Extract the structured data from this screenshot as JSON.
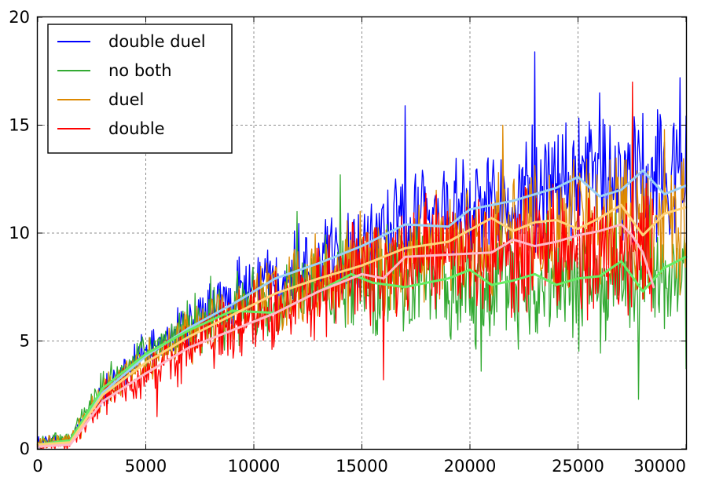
{
  "chart_data": {
    "type": "line",
    "title": "",
    "xlabel": "",
    "ylabel": "",
    "xlim": [
      0,
      30000
    ],
    "ylim": [
      0,
      20
    ],
    "xticks": [
      0,
      5000,
      10000,
      15000,
      20000,
      25000,
      30000
    ],
    "yticks": [
      0,
      5,
      10,
      15,
      20
    ],
    "xtick_labels": [
      "0",
      "5000",
      "10000",
      "15000",
      "20000",
      "25000",
      "30000"
    ],
    "ytick_labels": [
      "0",
      "5",
      "10",
      "15",
      "20"
    ],
    "grid": true,
    "legend_position": "top-left",
    "series": [
      {
        "name": "double duel",
        "color": "#0000ff",
        "raw": {
          "x_end": 30000,
          "trend_x": [
            0,
            1500,
            3000,
            5000,
            7000,
            10000,
            13000,
            15000,
            17000,
            20000,
            22000,
            24000,
            26000,
            28000,
            30000
          ],
          "trend_y": [
            0.3,
            0.4,
            2.6,
            4.4,
            5.8,
            7.6,
            8.9,
            9.6,
            10.3,
            11.1,
            11.7,
            12.1,
            12.3,
            12.7,
            12.9
          ],
          "noise": [
            0.3,
            0.3,
            0.9,
            1.2,
            1.5,
            1.9,
            2.3,
            2.6,
            2.8,
            3.1,
            3.3,
            3.5,
            3.5,
            3.6,
            3.6
          ],
          "peaks": [
            [
              4800,
              5.3
            ],
            [
              9300,
              8.9
            ],
            [
              17000,
              15.9
            ],
            [
              23000,
              18.4
            ],
            [
              26000,
              16.5
            ],
            [
              29700,
              17.2
            ]
          ]
        },
        "smoothed": {
          "name": "double duel (moving average)",
          "color": "#9ad0f5",
          "x": [
            0,
            1500,
            3000,
            5000,
            7000,
            9000,
            11000,
            13000,
            15000,
            17000,
            19000,
            20000,
            22000,
            24000,
            25000,
            26000,
            27000,
            28000,
            29000,
            30000
          ],
          "y": [
            0.2,
            0.3,
            2.6,
            4.3,
            5.6,
            6.7,
            7.9,
            8.6,
            9.4,
            10.4,
            10.3,
            11.1,
            11.5,
            12.1,
            12.6,
            11.7,
            12.0,
            12.9,
            11.8,
            12.2
          ]
        }
      },
      {
        "name": "no both",
        "color": "#33aa33",
        "raw": {
          "x_end": 30000,
          "trend_x": [
            0,
            1500,
            3000,
            5000,
            7000,
            10000,
            13000,
            15000,
            17000,
            20000,
            22000,
            24000,
            26000,
            28000,
            30000
          ],
          "trend_y": [
            0.3,
            0.5,
            2.9,
            4.5,
            5.6,
            6.6,
            7.5,
            7.8,
            7.8,
            7.8,
            7.6,
            7.8,
            7.9,
            7.8,
            8.6
          ],
          "noise": [
            0.3,
            0.4,
            0.9,
            1.2,
            1.6,
            2.1,
            2.6,
            2.9,
            3.1,
            3.4,
            3.6,
            3.8,
            3.8,
            3.9,
            4.0
          ],
          "peaks": [
            [
              8000,
              8.0
            ],
            [
              12000,
              11.0
            ],
            [
              14000,
              12.7
            ],
            [
              20500,
              3.6
            ],
            [
              27800,
              2.3
            ],
            [
              30000,
              3.7
            ]
          ]
        },
        "smoothed": {
          "name": "no both (moving average)",
          "color": "#66ee66",
          "x": [
            0,
            1500,
            3000,
            5000,
            7000,
            9000,
            11000,
            13000,
            14500,
            15500,
            17000,
            19000,
            20000,
            21000,
            22000,
            23000,
            24000,
            25000,
            26000,
            27000,
            28000,
            29000,
            30000
          ],
          "y": [
            0.2,
            0.4,
            2.8,
            4.4,
            5.5,
            6.4,
            6.3,
            7.3,
            8.1,
            7.7,
            7.5,
            7.9,
            8.3,
            7.6,
            7.8,
            8.1,
            7.6,
            7.9,
            8.0,
            8.7,
            7.3,
            8.4,
            8.9
          ]
        }
      },
      {
        "name": "duel",
        "color": "#dd8800",
        "raw": {
          "x_end": 30000,
          "trend_x": [
            0,
            1500,
            3000,
            5000,
            7000,
            10000,
            13000,
            15000,
            17000,
            20000,
            22000,
            24000,
            26000,
            28000,
            30000
          ],
          "trend_y": [
            0.3,
            0.4,
            2.6,
            4.1,
            5.3,
            6.8,
            7.9,
            8.5,
            9.0,
            9.6,
            9.9,
            10.2,
            10.6,
            10.4,
            10.8
          ],
          "noise": [
            0.3,
            0.3,
            0.9,
            1.2,
            1.6,
            2.0,
            2.4,
            2.7,
            3.0,
            3.3,
            3.5,
            3.6,
            3.7,
            3.7,
            3.8
          ],
          "peaks": [
            [
              2000,
              0.5
            ],
            [
              21500,
              15.0
            ],
            [
              27500,
              16.8
            ],
            [
              29000,
              14.8
            ]
          ]
        },
        "smoothed": {
          "name": "duel (moving average)",
          "color": "#ffd27a",
          "x": [
            0,
            1500,
            3000,
            5000,
            7000,
            9000,
            11000,
            13000,
            15000,
            17000,
            19000,
            21000,
            22000,
            23000,
            24000,
            25000,
            26000,
            27000,
            28000,
            29000,
            30000
          ],
          "y": [
            0.2,
            0.3,
            2.5,
            4.0,
            5.2,
            6.2,
            7.2,
            7.9,
            8.5,
            9.3,
            9.6,
            10.7,
            10.1,
            10.5,
            10.6,
            10.2,
            10.7,
            11.3,
            9.9,
            10.9,
            11.2
          ]
        }
      },
      {
        "name": "double",
        "color": "#ff0000",
        "raw": {
          "x_end": 28500,
          "trend_x": [
            0,
            1500,
            3000,
            5000,
            7000,
            10000,
            13000,
            15000,
            17000,
            20000,
            22000,
            24000,
            26000,
            28000,
            28500
          ],
          "trend_y": [
            0.1,
            0.2,
            2.3,
            3.5,
            4.7,
            6.0,
            7.3,
            8.0,
            8.6,
            9.1,
            9.3,
            9.3,
            9.5,
            9.4,
            9.3
          ],
          "noise": [
            0.2,
            0.3,
            0.9,
            1.3,
            1.7,
            2.1,
            2.6,
            2.9,
            3.2,
            3.5,
            3.7,
            3.8,
            3.8,
            3.8,
            3.8
          ],
          "peaks": [
            [
              5500,
              1.5
            ],
            [
              16000,
              3.2
            ],
            [
              27500,
              17.0
            ]
          ]
        },
        "smoothed": {
          "name": "double (moving average)",
          "color": "#ffb8c8",
          "x": [
            0,
            1500,
            3000,
            5000,
            7000,
            9000,
            11000,
            13000,
            15000,
            16000,
            17000,
            19000,
            21000,
            22000,
            23000,
            24000,
            25000,
            26000,
            27000,
            27500,
            28000,
            28500
          ],
          "y": [
            0.1,
            0.2,
            2.2,
            3.5,
            4.7,
            5.5,
            6.3,
            7.3,
            8.1,
            7.9,
            8.9,
            9.0,
            9.1,
            9.7,
            9.4,
            9.6,
            9.9,
            10.1,
            10.4,
            9.9,
            9.1,
            7.5
          ]
        }
      }
    ]
  }
}
